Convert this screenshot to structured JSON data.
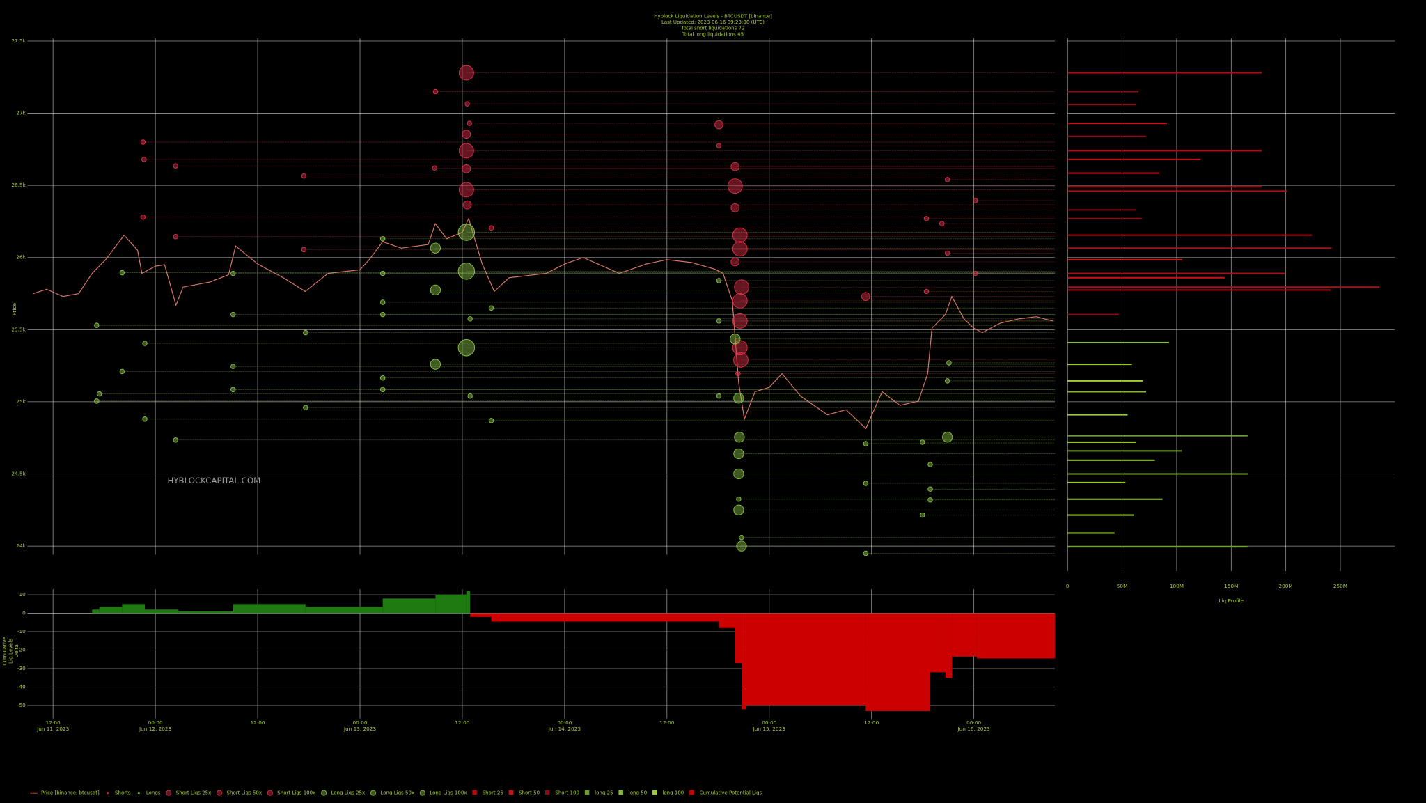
{
  "title_lines": [
    "Hyblock Liquidation Levels - BTCUSDT [binance]",
    "Last Updated: 2023-06-16 09:23:00 (UTC)",
    "Total short liquidations 72",
    "Total long liquidations 45"
  ],
  "watermark": "HYBLOCKCAPITAL.COM",
  "chart_data": [
    {
      "type": "line",
      "ylabel": "Price",
      "grid": true,
      "xlim": [
        "2023-06-11T09:00",
        "2023-06-16T09:30"
      ],
      "xticks": [
        {
          "value": "2023-06-11T12:00",
          "label": "12:00",
          "sublabel": "Jun 11, 2023"
        },
        {
          "value": "2023-06-12T00:00",
          "label": "00:00",
          "sublabel": "Jun 12, 2023"
        },
        {
          "value": "2023-06-12T12:00",
          "label": "12:00"
        },
        {
          "value": "2023-06-13T00:00",
          "label": "00:00",
          "sublabel": "Jun 13, 2023"
        },
        {
          "value": "2023-06-13T12:00",
          "label": "12:00"
        },
        {
          "value": "2023-06-14T00:00",
          "label": "00:00",
          "sublabel": "Jun 14, 2023"
        },
        {
          "value": "2023-06-14T12:00",
          "label": "12:00"
        },
        {
          "value": "2023-06-15T00:00",
          "label": "00:00",
          "sublabel": "Jun 15, 2023"
        },
        {
          "value": "2023-06-15T12:00",
          "label": "12:00"
        },
        {
          "value": "2023-06-16T00:00",
          "label": "00:00",
          "sublabel": "Jun 16, 2023"
        }
      ],
      "ylim": [
        23940,
        27520
      ],
      "yticks": [
        {
          "value": 24000,
          "label": "24k"
        },
        {
          "value": 24500,
          "label": "24.5k"
        },
        {
          "value": 25000,
          "label": "25k"
        },
        {
          "value": 25500,
          "label": "25.5k"
        },
        {
          "value": 26000,
          "label": "26k"
        },
        {
          "value": 26500,
          "label": "26.5k"
        },
        {
          "value": 27000,
          "label": "27k"
        },
        {
          "value": 27500,
          "label": "27.5k"
        }
      ],
      "series": [
        {
          "name": "Price [binance, btcusdt]",
          "type": "line",
          "color": "#d9776a",
          "x": [
            "2023-06-11T09:40",
            "2023-06-11T11:15",
            "2023-06-11T13:10",
            "2023-06-11T15:00",
            "2023-06-11T16:35",
            "2023-06-11T18:10",
            "2023-06-11T20:20",
            "2023-06-11T21:55",
            "2023-06-11T22:25",
            "2023-06-12T00:00",
            "2023-06-12T01:05",
            "2023-06-12T02:25",
            "2023-06-12T03:15",
            "2023-06-12T06:25",
            "2023-06-12T08:35",
            "2023-06-12T09:25",
            "2023-06-12T12:00",
            "2023-06-12T15:00",
            "2023-06-12T17:35",
            "2023-06-12T20:15",
            "2023-06-13T00:00",
            "2023-06-13T01:05",
            "2023-06-13T02:40",
            "2023-06-13T04:50",
            "2023-06-13T08:00",
            "2023-06-13T08:50",
            "2023-06-13T10:10",
            "2023-06-13T12:00",
            "2023-06-13T12:45",
            "2023-06-13T14:20",
            "2023-06-13T15:45",
            "2023-06-13T17:30",
            "2023-06-13T21:50",
            "2023-06-14T00:00",
            "2023-06-14T02:10",
            "2023-06-14T06:25",
            "2023-06-14T09:35",
            "2023-06-14T12:00",
            "2023-06-14T14:55",
            "2023-06-14T17:35",
            "2023-06-14T18:35",
            "2023-06-14T19:40",
            "2023-06-14T20:25",
            "2023-06-14T21:05",
            "2023-06-14T22:20",
            "2023-06-15T00:00",
            "2023-06-15T01:30",
            "2023-06-15T03:40",
            "2023-06-15T06:50",
            "2023-06-15T09:00",
            "2023-06-15T11:20",
            "2023-06-15T13:15",
            "2023-06-15T15:20",
            "2023-06-15T17:30",
            "2023-06-15T18:35",
            "2023-06-15T19:05",
            "2023-06-15T20:40",
            "2023-06-15T21:25",
            "2023-06-15T22:50",
            "2023-06-16T00:00",
            "2023-06-16T01:00",
            "2023-06-16T03:05",
            "2023-06-16T05:15",
            "2023-06-16T07:20",
            "2023-06-16T09:15"
          ],
          "values": [
            25750,
            25780,
            25730,
            25750,
            25890,
            25985,
            26155,
            26050,
            25890,
            25940,
            25950,
            25670,
            25795,
            25830,
            25880,
            26080,
            25955,
            25860,
            25765,
            25890,
            25915,
            25985,
            26110,
            26065,
            26090,
            26235,
            26130,
            26175,
            26270,
            25955,
            25765,
            25860,
            25890,
            25955,
            26000,
            25890,
            25955,
            25985,
            25965,
            25920,
            25890,
            25700,
            25130,
            24880,
            25070,
            25100,
            25195,
            25040,
            24910,
            24945,
            24815,
            25070,
            24975,
            25005,
            25195,
            25510,
            25605,
            25730,
            25575,
            25510,
            25480,
            25545,
            25575,
            25590,
            25560
          ]
        },
        {
          "name": "Shorts",
          "type": "scatter",
          "color": "#e03040",
          "marker_size": 1,
          "x": [],
          "values": []
        },
        {
          "name": "Longs",
          "type": "scatter",
          "color": "#8bc34a",
          "marker_size": 1,
          "x": [],
          "values": []
        },
        {
          "name": "Short Liqs 25x",
          "type": "bubble",
          "color": "#e0304a",
          "marker_size": 8,
          "x": [
            "2023-06-13T12:29",
            "2023-06-13T12:29",
            "2023-06-13T12:29",
            "2023-06-14T20:00",
            "2023-06-14T20:34",
            "2023-06-14T20:34",
            "2023-06-14T20:46",
            "2023-06-14T20:34",
            "2023-06-14T20:34",
            "2023-06-14T20:34",
            "2023-06-14T20:40"
          ],
          "values": [
            27280,
            26740,
            26470,
            26495,
            26155,
            26060,
            25795,
            25700,
            25560,
            25375,
            25290
          ]
        },
        {
          "name": "Short Liqs 50x",
          "type": "bubble",
          "color": "#e0304a",
          "marker_size": 4.5,
          "x": [
            "2023-06-13T12:29",
            "2023-06-13T12:35",
            "2023-06-14T18:06",
            "2023-06-14T20:00",
            "2023-06-14T20:00",
            "2023-06-14T20:00",
            "2023-06-15T11:19",
            "2023-06-13T12:29"
          ],
          "values": [
            26855,
            26365,
            26920,
            26630,
            26345,
            25970,
            25730,
            26615
          ]
        },
        {
          "name": "Short Liqs 100x",
          "type": "bubble",
          "color": "#e0304a",
          "marker_size": 2.5,
          "x": [
            "2023-06-13T08:51",
            "2023-06-13T12:35",
            "2023-06-13T12:50",
            "2023-06-11T22:33",
            "2023-06-11T22:40",
            "2023-06-12T02:23",
            "2023-06-12T17:25",
            "2023-06-13T08:45",
            "2023-06-11T22:33",
            "2023-06-12T02:23",
            "2023-06-12T17:25",
            "2023-06-13T15:24",
            "2023-06-14T18:06",
            "2023-06-15T18:26",
            "2023-06-15T20:15",
            "2023-06-15T20:54",
            "2023-06-16T00:10",
            "2023-06-15T20:54",
            "2023-06-16T00:10",
            "2023-06-15T18:26",
            "2023-06-14T20:20"
          ],
          "values": [
            27150,
            27065,
            26930,
            26800,
            26680,
            26635,
            26565,
            26620,
            26280,
            26145,
            26055,
            26205,
            26775,
            26270,
            26235,
            26540,
            26395,
            26030,
            25890,
            25765,
            25195
          ]
        },
        {
          "name": "Long Liqs 25x",
          "type": "bubble",
          "color": "#8bc34a",
          "marker_size": 9,
          "x": [
            "2023-06-13T12:29",
            "2023-06-13T12:29",
            "2023-06-13T12:29"
          ],
          "values": [
            26175,
            25905,
            25375
          ]
        },
        {
          "name": "Long Liqs 50x",
          "type": "bubble",
          "color": "#8bc34a",
          "marker_size": 5.5,
          "x": [
            "2023-06-13T08:51",
            "2023-06-13T08:51",
            "2023-06-13T08:51",
            "2023-06-14T20:00",
            "2023-06-14T20:25",
            "2023-06-14T20:30",
            "2023-06-14T20:25",
            "2023-06-14T20:25",
            "2023-06-14T20:45",
            "2023-06-15T20:54",
            "2023-06-14T20:25"
          ],
          "values": [
            26065,
            25775,
            25260,
            25435,
            25025,
            24755,
            24500,
            24250,
            24000,
            24755,
            24640
          ]
        },
        {
          "name": "Long Liqs 100x",
          "type": "bubble",
          "color": "#8bc34a",
          "marker_size": 2.5,
          "x": [
            "2023-06-13T02:40",
            "2023-06-13T02:40",
            "2023-06-13T02:40",
            "2023-06-13T02:40",
            "2023-06-13T02:40",
            "2023-06-13T02:40",
            "2023-06-11T20:06",
            "2023-06-11T20:06",
            "2023-06-11T17:07",
            "2023-06-11T17:26",
            "2023-06-11T17:07",
            "2023-06-11T22:46",
            "2023-06-11T22:46",
            "2023-06-12T02:23",
            "2023-06-12T09:07",
            "2023-06-12T09:07",
            "2023-06-12T09:07",
            "2023-06-12T09:07",
            "2023-06-12T17:37",
            "2023-06-12T17:37",
            "2023-06-13T12:55",
            "2023-06-13T12:55",
            "2023-06-13T15:24",
            "2023-06-13T15:24",
            "2023-06-14T18:06",
            "2023-06-14T18:06",
            "2023-06-14T18:06",
            "2023-06-14T20:25",
            "2023-06-14T20:45",
            "2023-06-15T11:19",
            "2023-06-15T11:19",
            "2023-06-15T11:19",
            "2023-06-15T17:58",
            "2023-06-15T17:58",
            "2023-06-15T18:53",
            "2023-06-15T18:53",
            "2023-06-15T18:53",
            "2023-06-15T21:05",
            "2023-06-15T20:54"
          ],
          "values": [
            26130,
            25890,
            25690,
            25605,
            25165,
            25085,
            25895,
            25210,
            25530,
            25055,
            25005,
            25405,
            24880,
            24735,
            25890,
            25605,
            25245,
            25085,
            25480,
            24960,
            25575,
            25040,
            25650,
            24870,
            25840,
            25560,
            25040,
            24325,
            24060,
            24710,
            24435,
            23950,
            24720,
            24215,
            24565,
            24395,
            24320,
            25270,
            25145
          ]
        }
      ]
    },
    {
      "type": "barh",
      "xlabel": "Liq Profile",
      "grid": true,
      "xlim": [
        0,
        300000000
      ],
      "xticks": [
        0,
        {
          "value": 50000000,
          "label": "50M"
        },
        {
          "value": 100000000,
          "label": "100M"
        },
        {
          "value": 150000000,
          "label": "150M"
        },
        {
          "value": 200000000,
          "label": "200M"
        },
        {
          "value": 250000000,
          "label": "250M"
        }
      ],
      "series": [
        {
          "name": "Short 25",
          "color": "#b00a14",
          "y": [
            27280,
            26740,
            26490,
            26460,
            26155,
            26065,
            25890,
            25795,
            25775
          ],
          "values": [
            178000000,
            178000000,
            178000000,
            201000000,
            224000000,
            242000000,
            199000000,
            286000000,
            241000000
          ]
        },
        {
          "name": "Short 50",
          "color": "#c8101e",
          "y": [
            26930,
            26585,
            26680,
            25985,
            25860
          ],
          "values": [
            91000000,
            84000000,
            122000000,
            105000000,
            144000000
          ]
        },
        {
          "name": "Short 100",
          "color": "#8a0c14",
          "y": [
            26840,
            26330,
            26270,
            27150,
            27060,
            25605
          ],
          "values": [
            72000000,
            63000000,
            68000000,
            65000000,
            63000000,
            47000000
          ]
        },
        {
          "name": "long 25",
          "color": "#6e9e2e",
          "y": [
            24765,
            24500,
            23995,
            24660
          ],
          "values": [
            165000000,
            165000000,
            165000000,
            105000000
          ]
        },
        {
          "name": "long 50",
          "color": "#8ab83a",
          "y": [
            25410,
            25070,
            24325,
            24595
          ],
          "values": [
            93000000,
            72000000,
            87000000,
            80000000
          ]
        },
        {
          "name": "long 100",
          "color": "#9acd32",
          "y": [
            25260,
            25145,
            24720,
            24440,
            24215,
            24090,
            24910
          ],
          "values": [
            59000000,
            69000000,
            63000000,
            53000000,
            61000000,
            43000000,
            55000000
          ]
        }
      ]
    },
    {
      "type": "area",
      "ylabel_lines": [
        "Cumulative",
        "Liq Levels",
        "Delta"
      ],
      "grid": true,
      "ylim": [
        -57,
        13
      ],
      "yticks": [
        10,
        0,
        -10,
        -20,
        -30,
        -40,
        -50
      ],
      "series": [
        {
          "name": "Cumulative Potential Liqs",
          "color": "#cc0000",
          "positive_color": "#1f7a12",
          "x": [
            "2023-06-11T09:00",
            "2023-06-11T16:35",
            "2023-06-11T17:26",
            "2023-06-11T20:06",
            "2023-06-11T22:46",
            "2023-06-12T02:43",
            "2023-06-12T09:07",
            "2023-06-12T17:37",
            "2023-06-13T02:40",
            "2023-06-13T08:51",
            "2023-06-13T12:29",
            "2023-06-13T12:55",
            "2023-06-13T15:24",
            "2023-06-14T18:06",
            "2023-06-14T20:01",
            "2023-06-14T20:46",
            "2023-06-14T21:18",
            "2023-06-15T11:19",
            "2023-06-15T18:53",
            "2023-06-15T20:41",
            "2023-06-15T21:26",
            "2023-06-16T00:21"
          ],
          "values": [
            0,
            2,
            3.5,
            5,
            2,
            1,
            5,
            3.5,
            8,
            10,
            12,
            -2,
            -4.5,
            -8,
            -27,
            -52,
            -50,
            -53,
            -32,
            -35,
            -23.5,
            -24.5
          ]
        }
      ]
    }
  ]
}
